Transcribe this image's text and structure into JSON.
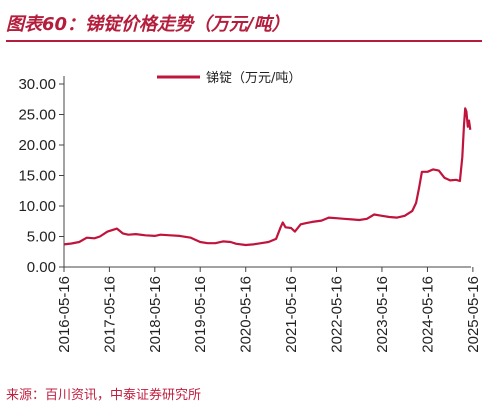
{
  "figure": {
    "title": "图表60：锑锭价格走势（万元/吨）",
    "source": "来源：百川资讯，中泰证券研究所"
  },
  "colors": {
    "accent": "#b41e3c",
    "series": "#c0143c",
    "axis": "#444444"
  },
  "chart_data": {
    "type": "line",
    "title": "",
    "xlabel": "",
    "ylabel": "",
    "ylim": [
      0,
      30
    ],
    "yticks": [
      "0.00",
      "5.00",
      "10.00",
      "15.00",
      "20.00",
      "25.00",
      "30.00"
    ],
    "xticks": [
      "2016-05-16",
      "2017-05-16",
      "2018-05-16",
      "2019-05-16",
      "2020-05-16",
      "2021-05-16",
      "2022-05-16",
      "2023-05-16",
      "2024-05-16",
      "2025-05-16"
    ],
    "grid": false,
    "legend": "top-center",
    "series": [
      {
        "name": "锑锭（万元/吨）",
        "points": [
          [
            "2016-05-16",
            3.7
          ],
          [
            "2016-07-15",
            3.85
          ],
          [
            "2016-09-15",
            4.1
          ],
          [
            "2016-11-15",
            4.8
          ],
          [
            "2017-01-15",
            4.7
          ],
          [
            "2017-03-01",
            5.0
          ],
          [
            "2017-05-01",
            5.8
          ],
          [
            "2017-06-15",
            6.1
          ],
          [
            "2017-07-15",
            6.3
          ],
          [
            "2017-09-01",
            5.5
          ],
          [
            "2017-10-15",
            5.3
          ],
          [
            "2017-12-15",
            5.4
          ],
          [
            "2018-03-01",
            5.2
          ],
          [
            "2018-05-16",
            5.1
          ],
          [
            "2018-07-01",
            5.3
          ],
          [
            "2018-09-15",
            5.2
          ],
          [
            "2018-12-01",
            5.1
          ],
          [
            "2019-03-01",
            4.8
          ],
          [
            "2019-05-16",
            4.1
          ],
          [
            "2019-07-15",
            3.9
          ],
          [
            "2019-09-15",
            3.9
          ],
          [
            "2019-11-15",
            4.2
          ],
          [
            "2020-01-15",
            4.1
          ],
          [
            "2020-03-01",
            3.8
          ],
          [
            "2020-05-16",
            3.6
          ],
          [
            "2020-07-15",
            3.7
          ],
          [
            "2020-09-15",
            3.9
          ],
          [
            "2020-11-15",
            4.1
          ],
          [
            "2021-01-15",
            4.6
          ],
          [
            "2021-02-20",
            6.5
          ],
          [
            "2021-03-10",
            7.3
          ],
          [
            "2021-04-01",
            6.5
          ],
          [
            "2021-05-16",
            6.4
          ],
          [
            "2021-06-15",
            5.8
          ],
          [
            "2021-08-01",
            7.0
          ],
          [
            "2021-09-15",
            7.2
          ],
          [
            "2021-11-01",
            7.4
          ],
          [
            "2022-01-15",
            7.6
          ],
          [
            "2022-03-15",
            8.1
          ],
          [
            "2022-05-16",
            8.0
          ],
          [
            "2022-07-15",
            7.9
          ],
          [
            "2022-09-15",
            7.8
          ],
          [
            "2022-11-15",
            7.7
          ],
          [
            "2023-01-15",
            7.9
          ],
          [
            "2023-03-15",
            8.6
          ],
          [
            "2023-05-16",
            8.4
          ],
          [
            "2023-07-15",
            8.2
          ],
          [
            "2023-09-15",
            8.1
          ],
          [
            "2023-11-15",
            8.4
          ],
          [
            "2024-01-15",
            9.2
          ],
          [
            "2024-02-15",
            10.5
          ],
          [
            "2024-03-10",
            13.0
          ],
          [
            "2024-04-01",
            15.6
          ],
          [
            "2024-05-16",
            15.6
          ],
          [
            "2024-07-01",
            16.0
          ],
          [
            "2024-08-15",
            15.8
          ],
          [
            "2024-10-01",
            14.6
          ],
          [
            "2024-11-15",
            14.2
          ],
          [
            "2025-01-01",
            14.3
          ],
          [
            "2025-02-01",
            14.1
          ],
          [
            "2025-02-20",
            18.0
          ],
          [
            "2025-03-05",
            23.0
          ],
          [
            "2025-03-15",
            26.0
          ],
          [
            "2025-03-25",
            25.5
          ],
          [
            "2025-04-05",
            23.0
          ],
          [
            "2025-04-15",
            24.0
          ],
          [
            "2025-04-25",
            22.5
          ]
        ]
      }
    ]
  }
}
